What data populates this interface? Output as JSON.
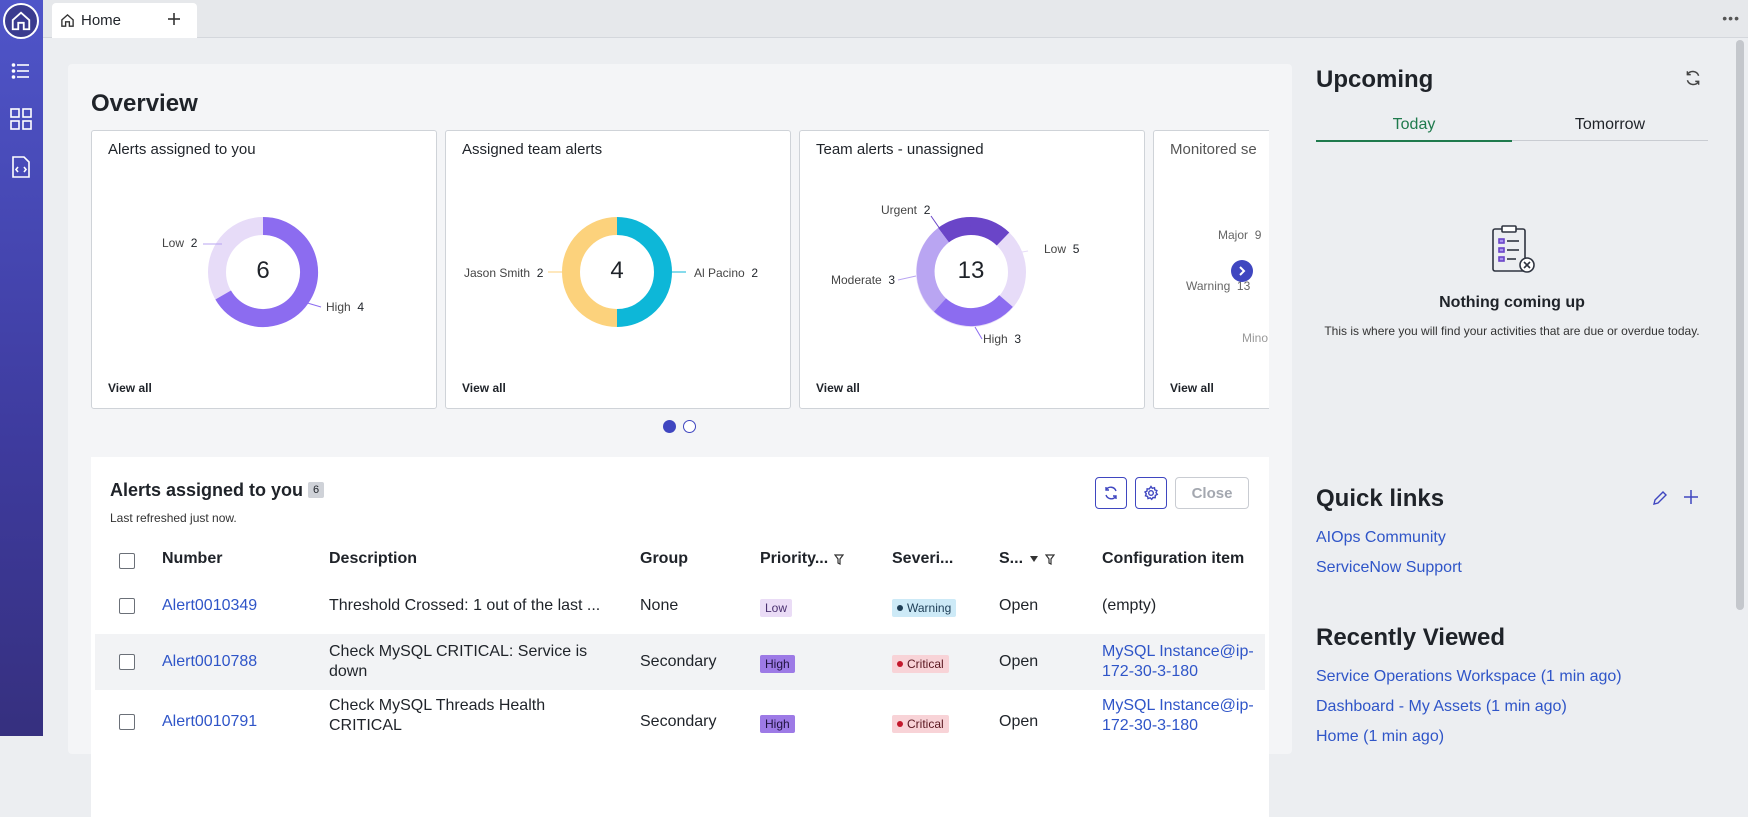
{
  "tabs": {
    "home_label": "Home"
  },
  "overview": {
    "title": "Overview",
    "cards": [
      {
        "title": "Alerts assigned to you",
        "total": "6",
        "link": "View all",
        "segments": [
          {
            "label": "Low",
            "value": 2,
            "color": "#e7dcf8"
          },
          {
            "label": "High",
            "value": 4,
            "color": "#8c6cf0"
          }
        ]
      },
      {
        "title": "Assigned team alerts",
        "total": "4",
        "link": "View all",
        "segments": [
          {
            "label": "Jason Smith",
            "value": 2,
            "color": "#fcd27c"
          },
          {
            "label": "Al Pacino",
            "value": 2,
            "color": "#0db7d8"
          }
        ]
      },
      {
        "title": "Team alerts - unassigned",
        "total": "13",
        "link": "View all",
        "segments": [
          {
            "label": "Urgent",
            "value": 2,
            "color": "#6a45c8"
          },
          {
            "label": "Moderate",
            "value": 3,
            "color": "#b9a5f2"
          },
          {
            "label": "High",
            "value": 3,
            "color": "#8c6cf0"
          },
          {
            "label": "Low",
            "value": 5,
            "color": "#e7dcf8"
          }
        ]
      },
      {
        "title": "Monitored se",
        "link": "View all",
        "labels": [
          {
            "label": "Major",
            "value": "9"
          },
          {
            "label": "Warning",
            "value": "13"
          },
          {
            "label": "Mino",
            "value": ""
          }
        ]
      }
    ]
  },
  "alerts_table": {
    "title": "Alerts assigned to you",
    "count": "6",
    "subtitle": "Last refreshed just now.",
    "close_label": "Close",
    "columns": [
      "Number",
      "Description",
      "Group",
      "Priority...",
      "Severi...",
      "S...",
      "Configuration item"
    ],
    "rows": [
      {
        "number": "Alert0010349",
        "description": "Threshold Crossed: 1 out of the last ...",
        "group": "None",
        "priority": "Low",
        "severity": "Warning",
        "state": "Open",
        "ci": "(empty)"
      },
      {
        "number": "Alert0010788",
        "description": "Check MySQL CRITICAL: Service is down",
        "group": "Secondary",
        "priority": "High",
        "severity": "Critical",
        "state": "Open",
        "ci": "MySQL Instance@ip-172-30-3-180"
      },
      {
        "number": "Alert0010791",
        "description": "Check MySQL Threads Health CRITICAL",
        "group": "Secondary",
        "priority": "High",
        "severity": "Critical",
        "state": "Open",
        "ci": "MySQL Instance@ip-172-30-3-180"
      }
    ]
  },
  "upcoming": {
    "title": "Upcoming",
    "tab_today": "Today",
    "tab_tomorrow": "Tomorrow",
    "empty_title": "Nothing coming up",
    "empty_text": "This is where you will find your activities that are due or overdue today."
  },
  "quick_links": {
    "title": "Quick links",
    "items": [
      "AIOps Community",
      "ServiceNow Support"
    ]
  },
  "recently_viewed": {
    "title": "Recently Viewed",
    "items": [
      "Service Operations Workspace (1 min ago)",
      "Dashboard - My Assets (1 min ago)",
      "Home (1 min ago)"
    ]
  },
  "colors": {
    "accent": "#3f46c0",
    "link": "#2f55c8",
    "tab_active": "#1f7a4d"
  }
}
